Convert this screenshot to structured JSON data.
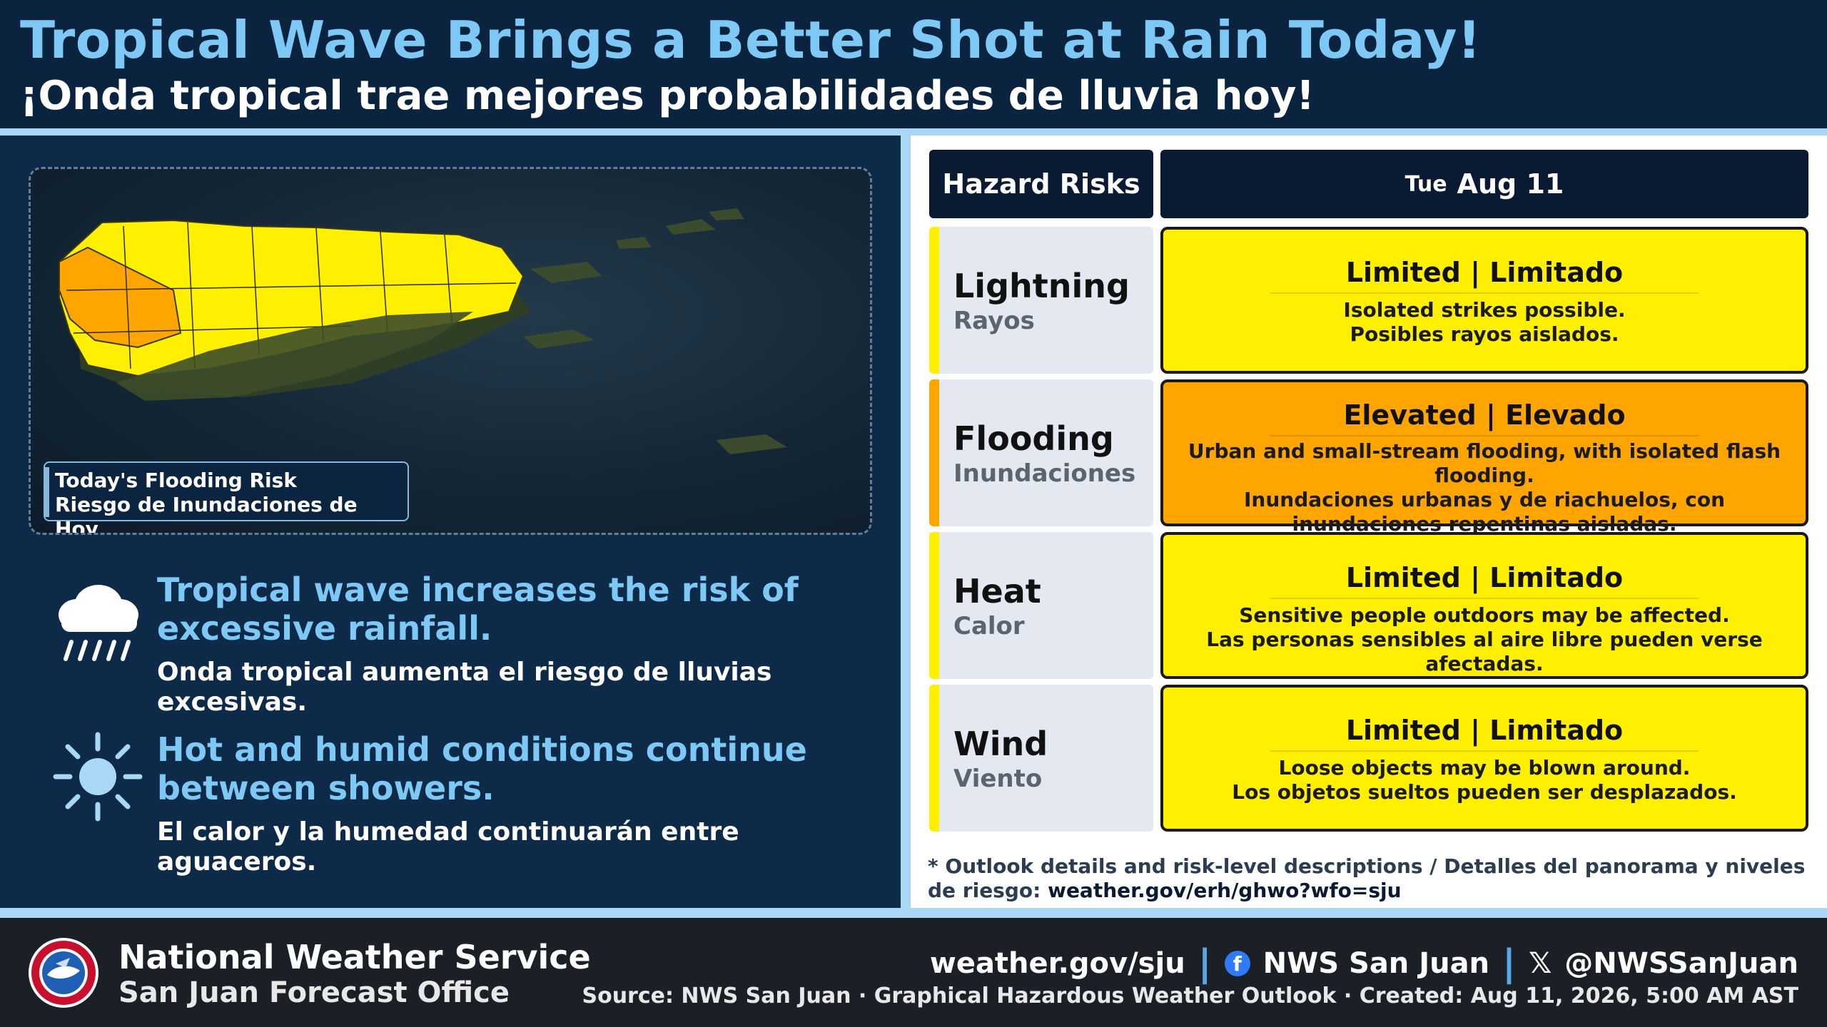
{
  "header": {
    "title_en": "Tropical Wave Brings a Better Shot at Rain Today!",
    "title_es": "¡Onda tropical trae mejores probabilidades de lluvia hoy!"
  },
  "map": {
    "label_en": "Today's Flooding Risk",
    "label_es": "Riesgo de Inundaciones de Hoy"
  },
  "bullets": [
    {
      "icon": "rain-cloud-icon",
      "text_en": "Tropical wave increases the risk of excessive rainfall.",
      "text_es": "Onda tropical aumenta el riesgo de lluvias excesivas."
    },
    {
      "icon": "sun-icon",
      "text_en": "Hot and humid conditions continue between showers.",
      "text_es": "El calor y la humedad continuarán entre aguaceros."
    }
  ],
  "table": {
    "header_left": "Hazard Risks",
    "header_day": "Tue",
    "header_date": "Aug 11",
    "rows": [
      {
        "hazard_en": "Lightning",
        "hazard_es": "Rayos",
        "level": "Limited | Limitado",
        "color": "#ffef00",
        "desc_en": "Isolated strikes possible.",
        "desc_es": "Posibles rayos aislados."
      },
      {
        "hazard_en": "Flooding",
        "hazard_es": "Inundaciones",
        "level": "Elevated | Elevado",
        "color": "#ffa500",
        "desc_en": "Urban and small-stream flooding, with isolated flash flooding.",
        "desc_es": "Inundaciones urbanas y de riachuelos, con inundaciones repentinas aisladas."
      },
      {
        "hazard_en": "Heat",
        "hazard_es": "Calor",
        "level": "Limited | Limitado",
        "color": "#ffef00",
        "desc_en": "Sensitive people outdoors may be affected.",
        "desc_es": "Las personas sensibles al aire libre pueden verse afectadas."
      },
      {
        "hazard_en": "Wind",
        "hazard_es": "Viento",
        "level": "Limited | Limitado",
        "color": "#ffef00",
        "desc_en": "Loose objects may be blown around.",
        "desc_es": "Los objetos sueltos pueden ser desplazados."
      }
    ],
    "footnote_text": "* Outlook details and risk-level descriptions / Detalles del panorama y niveles de riesgo:",
    "footnote_url": "weather.gov/erh/ghwo?wfo=sju"
  },
  "footer": {
    "org": "National Weather Service",
    "office": "San Juan Forecast Office",
    "website": "weather.gov/sju",
    "facebook": "NWS San Juan",
    "twitter": "@NWSSanJuan",
    "twitter_glyph": "𝕏",
    "source": "Source: NWS San Juan · Graphical Hazardous Weather Outlook · Created: Aug 11, 2026, 5:00 AM AST"
  },
  "colors": {
    "accent_blue": "#7dc8f4",
    "limited_yellow": "#ffef00",
    "elevated_orange": "#ffa500"
  }
}
